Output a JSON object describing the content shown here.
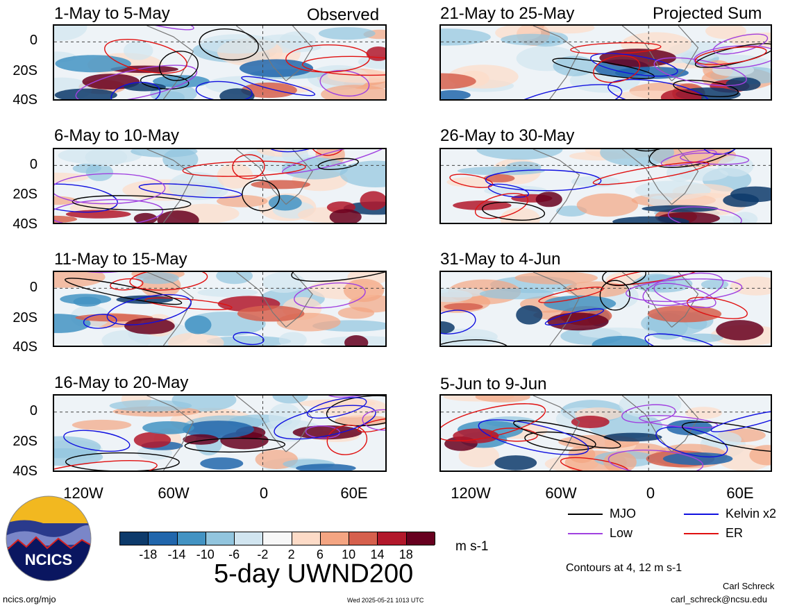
{
  "panels_left": [
    {
      "title": "1-May to 5-May",
      "tag": "Observed"
    },
    {
      "title": "6-May to 10-May",
      "tag": ""
    },
    {
      "title": "11-May to 15-May",
      "tag": ""
    },
    {
      "title": "16-May to 20-May",
      "tag": ""
    }
  ],
  "panels_right": [
    {
      "title": "21-May to 25-May",
      "tag": "Projected Sum"
    },
    {
      "title": "26-May to 30-May",
      "tag": ""
    },
    {
      "title": "31-May to 4-Jun",
      "tag": ""
    },
    {
      "title": "5-Jun to 9-Jun",
      "tag": ""
    }
  ],
  "y_labels": [
    "0",
    "20S",
    "40S"
  ],
  "x_labels": [
    "120W",
    "60W",
    "0",
    "60E"
  ],
  "legend": {
    "mjo": "MJO",
    "kelvin": "Kelvin x2",
    "low": "Low",
    "er": "ER",
    "contours_note": "Contours at 4, 12 m s-1",
    "colors": {
      "mjo": "#000000",
      "kelvin": "#1010e0",
      "low": "#a040e0",
      "er": "#e01010"
    }
  },
  "colorbar": {
    "ticks": [
      "-18",
      "-14",
      "-10",
      "-6",
      "-2",
      "2",
      "6",
      "10",
      "14",
      "18"
    ],
    "units": "m s-1",
    "colors": [
      "#0d3a6b",
      "#2166ac",
      "#4393c3",
      "#92c5de",
      "#d1e5f0",
      "#f7f7f7",
      "#fddbc7",
      "#f4a582",
      "#d6604d",
      "#b2182b",
      "#67001f"
    ]
  },
  "title": "5-day UWND200",
  "logo": {
    "text": "NCICS"
  },
  "footer": {
    "url": "ncics.org/mjo",
    "timestamp": "Wed 2025-05-21 1013 UTC",
    "author": "Carl Schreck",
    "email": "carl_schreck@ncsu.edu"
  }
}
